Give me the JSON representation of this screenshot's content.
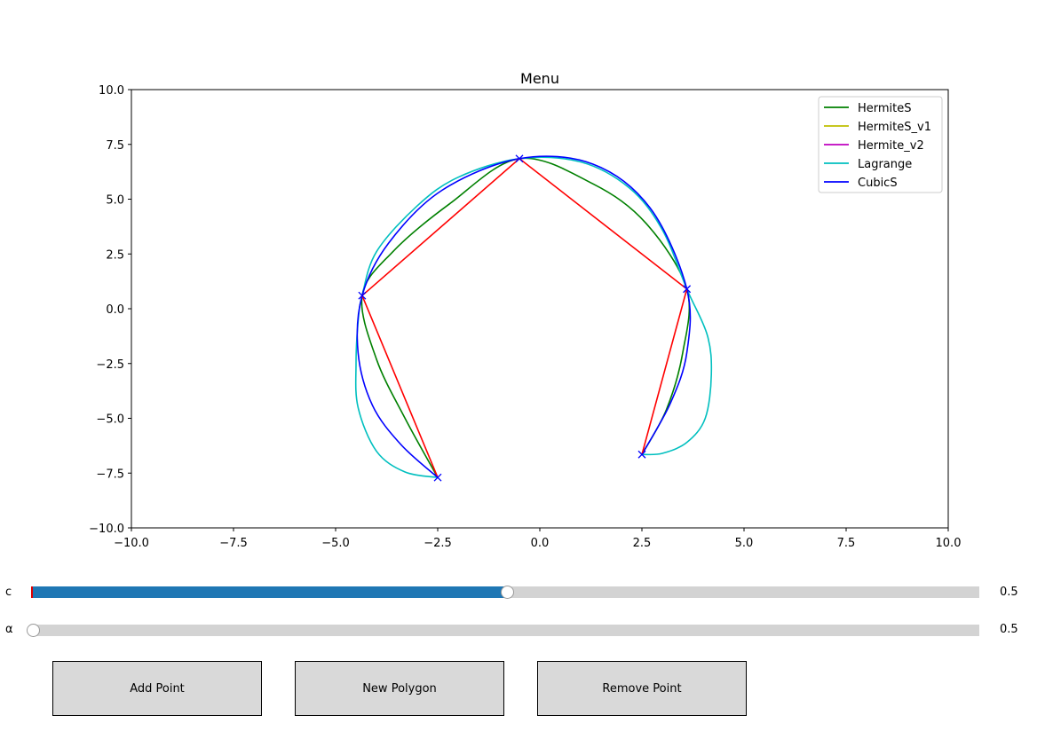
{
  "chart_data": {
    "type": "line",
    "title": "Menu",
    "xlim": [
      -10,
      10
    ],
    "ylim": [
      -10,
      10
    ],
    "xticks": [
      -10.0,
      -7.5,
      -5.0,
      -2.5,
      0.0,
      2.5,
      5.0,
      7.5,
      10.0
    ],
    "yticks": [
      -10.0,
      -7.5,
      -5.0,
      -2.5,
      0.0,
      2.5,
      5.0,
      7.5,
      10.0
    ],
    "tick_labels_x": [
      "−10.0",
      "−7.5",
      "−5.0",
      "−2.5",
      "0.0",
      "2.5",
      "5.0",
      "7.5",
      "10.0"
    ],
    "tick_labels_y": [
      "−10.0",
      "−7.5",
      "−5.0",
      "−2.5",
      "0.0",
      "2.5",
      "5.0",
      "7.5",
      "10.0"
    ],
    "legend_position": "top-right",
    "legend": [
      {
        "name": "HermiteS",
        "color": "#008000"
      },
      {
        "name": "HermiteS_v1",
        "color": "#bfbf00"
      },
      {
        "name": "Hermite_v2",
        "color": "#bf00bf"
      },
      {
        "name": "Lagrange",
        "color": "#00bfbf"
      },
      {
        "name": "CubicS",
        "color": "#0000ff"
      }
    ],
    "control_points": [
      [
        -2.5,
        -7.7
      ],
      [
        -4.35,
        0.6
      ],
      [
        -0.5,
        6.85
      ],
      [
        3.6,
        0.9
      ],
      [
        2.5,
        -6.65
      ]
    ],
    "polygon_color": "#ff0000",
    "series": [
      {
        "name": "HermiteS",
        "color": "#008000",
        "points": [
          [
            -2.5,
            -7.7
          ],
          [
            -3.3,
            -5.0
          ],
          [
            -4.0,
            -2.3
          ],
          [
            -4.35,
            0.6
          ],
          [
            -3.6,
            2.6
          ],
          [
            -2.2,
            4.8
          ],
          [
            -0.5,
            6.85
          ],
          [
            1.3,
            5.7
          ],
          [
            2.6,
            3.9
          ],
          [
            3.6,
            0.9
          ],
          [
            3.5,
            -2.0
          ],
          [
            3.1,
            -4.6
          ],
          [
            2.5,
            -6.65
          ]
        ]
      },
      {
        "name": "Lagrange",
        "color": "#00bfbf",
        "points": [
          [
            -2.5,
            -7.7
          ],
          [
            -3.3,
            -7.45
          ],
          [
            -4.0,
            -6.5
          ],
          [
            -4.45,
            -4.5
          ],
          [
            -4.5,
            -2.5
          ],
          [
            -4.45,
            -0.6
          ],
          [
            -4.35,
            0.6
          ],
          [
            -4.0,
            2.6
          ],
          [
            -3.0,
            4.7
          ],
          [
            -2.0,
            6.0
          ],
          [
            -0.5,
            6.85
          ],
          [
            1.0,
            6.7
          ],
          [
            2.2,
            5.5
          ],
          [
            3.0,
            3.6
          ],
          [
            3.6,
            0.9
          ],
          [
            4.1,
            -1.2
          ],
          [
            4.2,
            -3.0
          ],
          [
            4.05,
            -5.0
          ],
          [
            3.6,
            -6.1
          ],
          [
            3.0,
            -6.6
          ],
          [
            2.5,
            -6.65
          ]
        ]
      },
      {
        "name": "CubicS",
        "color": "#0000ff",
        "points": [
          [
            -2.5,
            -7.7
          ],
          [
            -3.4,
            -6.2
          ],
          [
            -4.1,
            -4.4
          ],
          [
            -4.45,
            -2.0
          ],
          [
            -4.35,
            0.6
          ],
          [
            -3.7,
            3.0
          ],
          [
            -2.4,
            5.4
          ],
          [
            -0.5,
            6.85
          ],
          [
            1.3,
            6.6
          ],
          [
            2.7,
            4.6
          ],
          [
            3.6,
            0.9
          ],
          [
            3.6,
            -2.0
          ],
          [
            3.2,
            -4.3
          ],
          [
            2.5,
            -6.65
          ]
        ]
      }
    ]
  },
  "sliders": {
    "c": {
      "label": "c",
      "value": 0.5,
      "value_text": "0.5",
      "min": 0,
      "max": 1,
      "fill_fraction": 0.5
    },
    "alpha": {
      "label": "α",
      "value": 0.5,
      "value_text": "0.5",
      "fill_fraction": 0.0
    }
  },
  "buttons": {
    "add_point": "Add Point",
    "new_polygon": "New Polygon",
    "remove_point": "Remove Point"
  }
}
